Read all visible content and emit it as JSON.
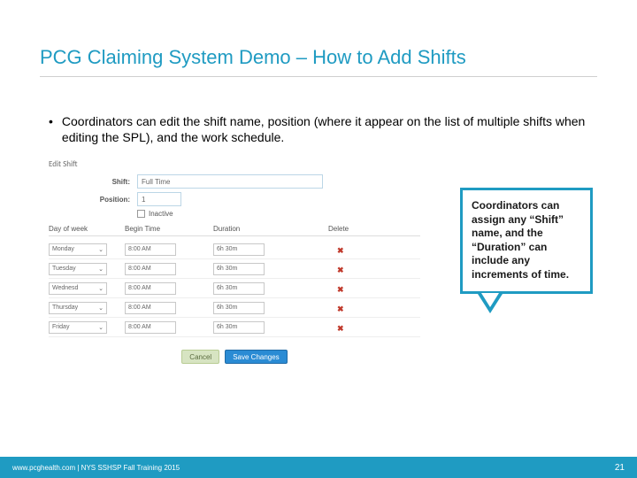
{
  "title": "PCG Claiming System Demo – How to Add Shifts",
  "bullet": "Coordinators can edit the shift name, position (where it appear on the list of multiple shifts when editing the SPL), and the work schedule.",
  "screenshot": {
    "header": "Edit Shift",
    "shift_label": "Shift:",
    "shift_value": "Full Time",
    "position_label": "Position:",
    "position_value": "1",
    "inactive_label": "Inactive",
    "columns": {
      "day": "Day of week",
      "begin": "Begin Time",
      "duration": "Duration",
      "delete": "Delete"
    },
    "rows": [
      {
        "day": "Monday",
        "begin": "8:00 AM",
        "duration": "6h 30m"
      },
      {
        "day": "Tuesday",
        "begin": "8:00 AM",
        "duration": "6h 30m"
      },
      {
        "day": "Wednesd",
        "begin": "8:00 AM",
        "duration": "6h 30m"
      },
      {
        "day": "Thursday",
        "begin": "8:00 AM",
        "duration": "6h 30m"
      },
      {
        "day": "Friday",
        "begin": "8:00 AM",
        "duration": "6h 30m"
      }
    ],
    "cancel": "Cancel",
    "save": "Save Changes"
  },
  "callout": "Coordinators can assign any “Shift” name, and the “Duration” can include any increments of time.",
  "footer": {
    "left": "www.pcghealth.com | NYS SSHSP Fall Training 2015",
    "page": "21"
  },
  "colors": {
    "accent": "#1f9bc2",
    "underline": "#cfcfcf",
    "footer_bg": "#1f9bc2"
  }
}
